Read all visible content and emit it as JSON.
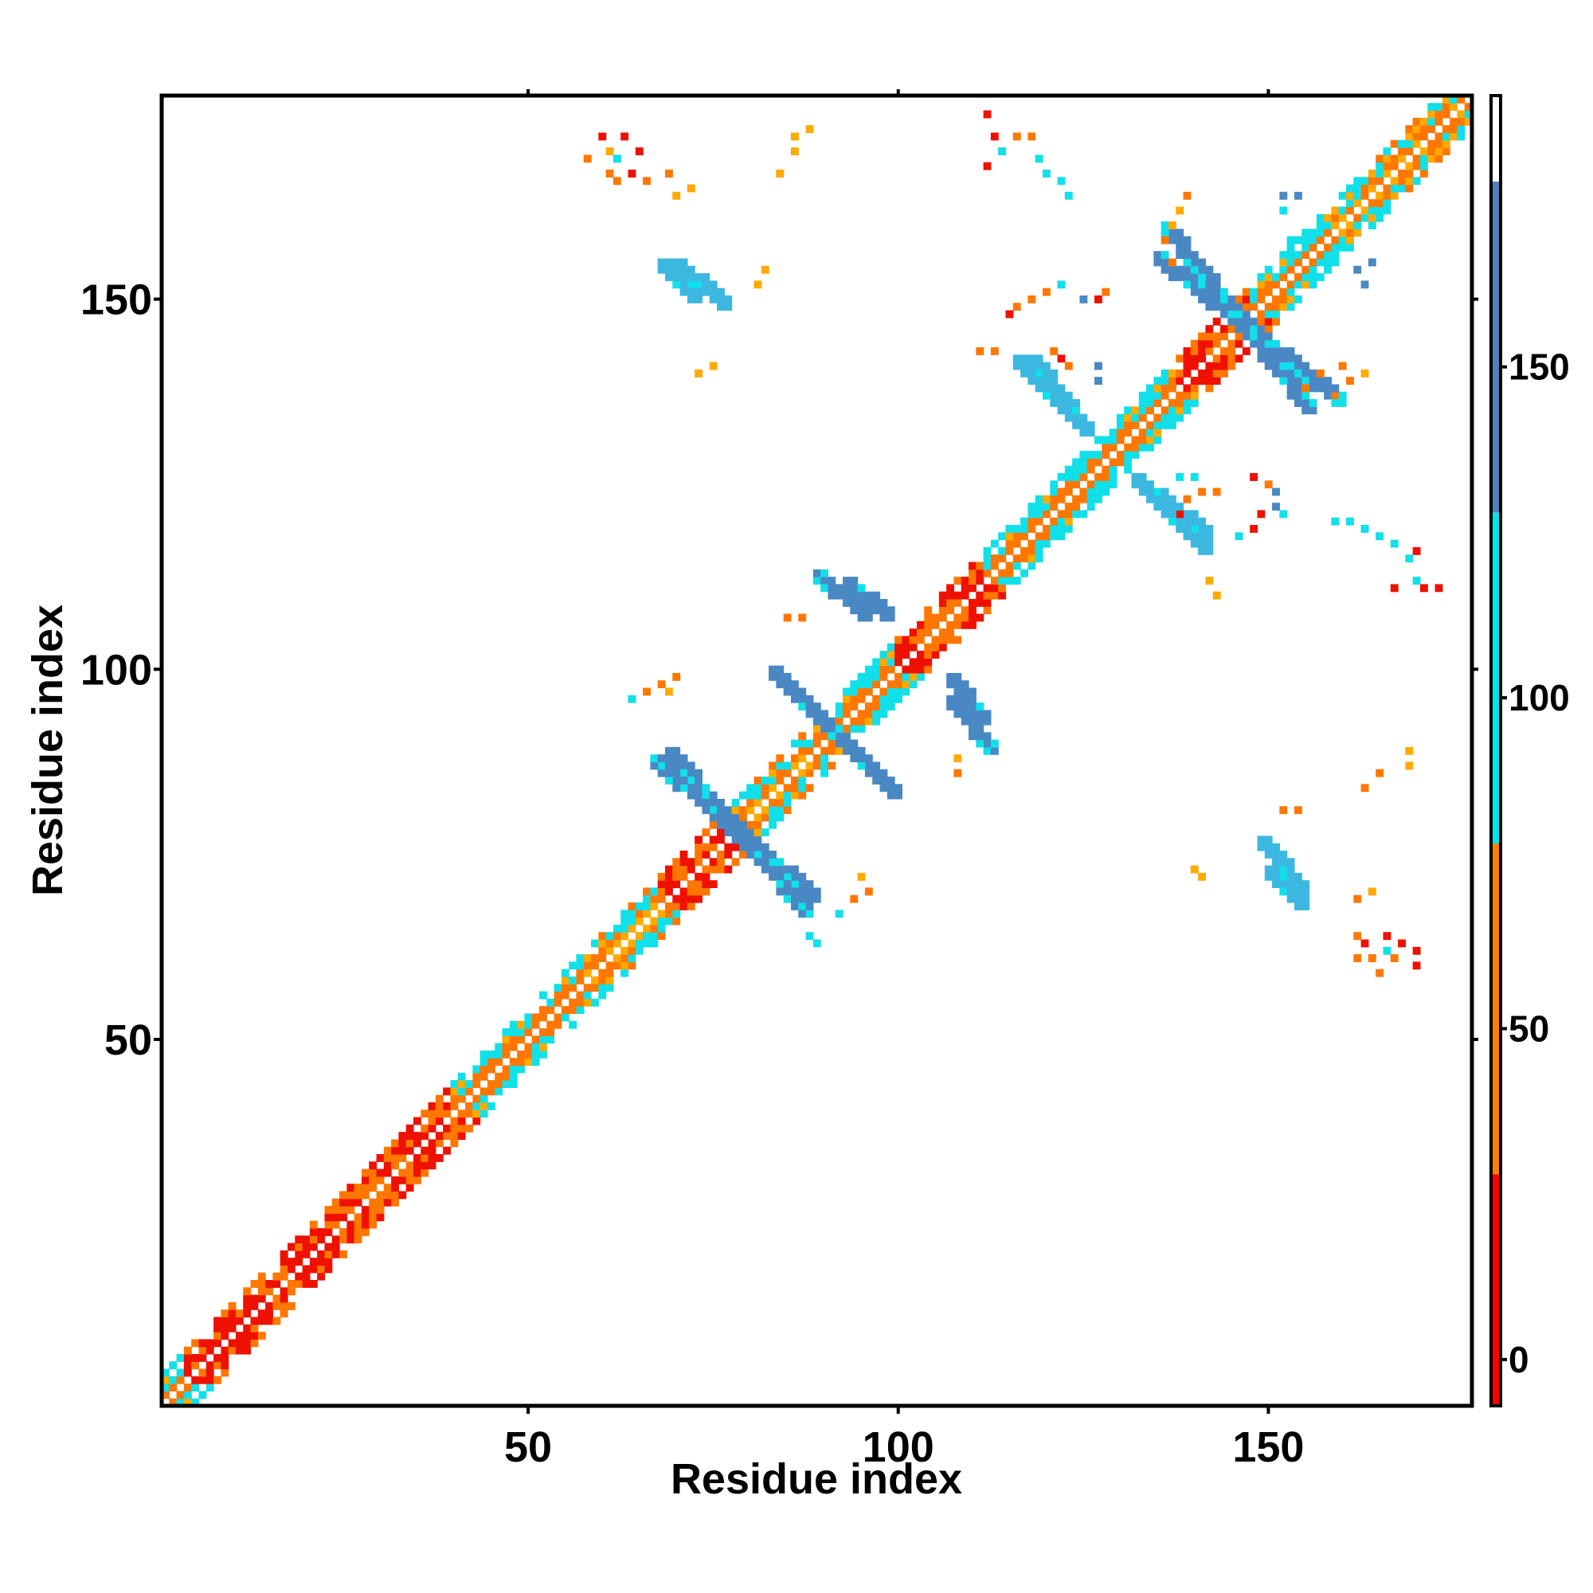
{
  "chart_data": {
    "type": "heatmap",
    "title": "",
    "xlabel": "Residue index",
    "ylabel": "Residue index",
    "xlim": [
      1,
      177
    ],
    "ylim": [
      1,
      177
    ],
    "x_ticks": [
      50,
      100,
      150
    ],
    "y_ticks": [
      50,
      100,
      150
    ],
    "grid": false,
    "colorbar": {
      "ticks": [
        0,
        50,
        100,
        150
      ],
      "range": [
        -7,
        191
      ],
      "bands": [
        {
          "from": -7,
          "to": 28,
          "color": "#ff0000"
        },
        {
          "from": 28,
          "to": 78,
          "color": "#ff7f00"
        },
        {
          "from": 78,
          "to": 128,
          "color": "#00e5ee"
        },
        {
          "from": 128,
          "to": 178,
          "color": "#4f81bd"
        },
        {
          "from": 178,
          "to": 191,
          "color": "#ffffff"
        }
      ]
    },
    "colors": {
      "red": "#ee1100",
      "orange": "#ff7700",
      "amber": "#ffaa00",
      "cyan": "#11e0ea",
      "skyblue": "#3cb8e0",
      "steelblue": "#4a88c4"
    },
    "diagonal_band": {
      "from": 1,
      "to": 177,
      "segments": [
        {
          "from": 1,
          "to": 4,
          "color": "cyan"
        },
        {
          "from": 4,
          "to": 40,
          "color": "red"
        },
        {
          "from": 40,
          "to": 58,
          "color": "cyan"
        },
        {
          "from": 58,
          "to": 68,
          "color": "orange"
        },
        {
          "from": 68,
          "to": 77,
          "color": "red"
        },
        {
          "from": 77,
          "to": 88,
          "color": "orange"
        },
        {
          "from": 88,
          "to": 100,
          "color": "cyan"
        },
        {
          "from": 100,
          "to": 112,
          "color": "red"
        },
        {
          "from": 112,
          "to": 138,
          "color": "cyan"
        },
        {
          "from": 138,
          "to": 148,
          "color": "red"
        },
        {
          "from": 148,
          "to": 158,
          "color": "cyan"
        },
        {
          "from": 158,
          "to": 177,
          "color": "orange"
        }
      ]
    },
    "antiparallel_strands": [
      {
        "x": [
          69,
          87
        ],
        "y": [
          88,
          67
        ],
        "color": "steelblue"
      },
      {
        "x": [
          84,
          99
        ],
        "y": [
          98,
          83
        ],
        "color": "steelblue"
      },
      {
        "x": [
          135,
          159
        ],
        "y": [
          155,
          136
        ],
        "color": "steelblue"
      },
      {
        "x": [
          118,
          125
        ],
        "y": [
          141,
          132
        ],
        "color": "skyblue"
      },
      {
        "x": [
          134,
          141
        ],
        "y": [
          123,
          116
        ],
        "color": "skyblue"
      },
      {
        "x": [
          70,
          76
        ],
        "y": [
          154,
          149
        ],
        "color": "skyblue"
      },
      {
        "x": [
          89,
          95
        ],
        "y": [
          112,
          107
        ],
        "color": "steelblue"
      },
      {
        "x": [
          107,
          111
        ],
        "y": [
          98,
          93
        ],
        "color": "steelblue"
      },
      {
        "x": [
          150,
          154
        ],
        "y": [
          72,
          68
        ],
        "color": "skyblue"
      }
    ],
    "contacts": [
      [
        60,
        172,
        "red"
      ],
      [
        63,
        172,
        "red"
      ],
      [
        58,
        169,
        "orange"
      ],
      [
        61,
        170,
        "amber"
      ],
      [
        62,
        169,
        "cyan"
      ],
      [
        65,
        170,
        "red"
      ],
      [
        61,
        167,
        "orange"
      ],
      [
        62,
        166,
        "orange"
      ],
      [
        64,
        167,
        "red"
      ],
      [
        66,
        166,
        "orange"
      ],
      [
        69,
        167,
        "orange"
      ],
      [
        70,
        164,
        "amber"
      ],
      [
        72,
        165,
        "amber"
      ],
      [
        86,
        172,
        "amber"
      ],
      [
        88,
        173,
        "amber"
      ],
      [
        86,
        170,
        "amber"
      ],
      [
        84,
        167,
        "amber"
      ],
      [
        112,
        175,
        "red"
      ],
      [
        113,
        172,
        "red"
      ],
      [
        114,
        170,
        "cyan"
      ],
      [
        116,
        172,
        "orange"
      ],
      [
        118,
        172,
        "orange"
      ],
      [
        119,
        169,
        "cyan"
      ],
      [
        112,
        168,
        "red"
      ],
      [
        120,
        167,
        "cyan"
      ],
      [
        122,
        166,
        "cyan"
      ],
      [
        123,
        164,
        "cyan"
      ],
      [
        81,
        152,
        "amber"
      ],
      [
        82,
        154,
        "amber"
      ],
      [
        73,
        140,
        "amber"
      ],
      [
        75,
        141,
        "amber"
      ],
      [
        122,
        152,
        "cyan"
      ],
      [
        118,
        150,
        "orange"
      ],
      [
        120,
        151,
        "orange"
      ],
      [
        116,
        149,
        "orange"
      ],
      [
        115,
        148,
        "red"
      ],
      [
        127,
        150,
        "red"
      ],
      [
        128,
        151,
        "orange"
      ],
      [
        125,
        150,
        "steelblue"
      ],
      [
        111,
        143,
        "orange"
      ],
      [
        113,
        143,
        "orange"
      ],
      [
        121,
        143,
        "orange"
      ],
      [
        122,
        142,
        "red"
      ],
      [
        123,
        141,
        "orange"
      ],
      [
        127,
        141,
        "steelblue"
      ],
      [
        127,
        139,
        "steelblue"
      ],
      [
        139,
        164,
        "orange"
      ],
      [
        138,
        162,
        "amber"
      ],
      [
        137,
        160,
        "amber"
      ],
      [
        136,
        158,
        "orange"
      ],
      [
        137,
        155,
        "orange"
      ],
      [
        152,
        164,
        "steelblue"
      ],
      [
        154,
        164,
        "steelblue"
      ],
      [
        152,
        162,
        "cyan"
      ],
      [
        153,
        158,
        "cyan"
      ],
      [
        162,
        154,
        "steelblue"
      ],
      [
        164,
        155,
        "steelblue"
      ],
      [
        163,
        152,
        "steelblue"
      ],
      [
        160,
        141,
        "orange"
      ],
      [
        163,
        140,
        "amber"
      ],
      [
        157,
        140,
        "orange"
      ],
      [
        155,
        138,
        "orange"
      ],
      [
        159,
        137,
        "orange"
      ],
      [
        161,
        139,
        "orange"
      ],
      [
        138,
        126,
        "cyan"
      ],
      [
        140,
        126,
        "cyan"
      ],
      [
        139,
        123,
        "orange"
      ],
      [
        141,
        124,
        "orange"
      ],
      [
        143,
        124,
        "orange"
      ],
      [
        138,
        121,
        "red"
      ],
      [
        148,
        126,
        "red"
      ],
      [
        150,
        125,
        "orange"
      ],
      [
        151,
        124,
        "steelblue"
      ],
      [
        151,
        122,
        "steelblue"
      ],
      [
        149,
        121,
        "red"
      ],
      [
        152,
        121,
        "cyan"
      ],
      [
        148,
        119,
        "red"
      ],
      [
        146,
        118,
        "cyan"
      ],
      [
        159,
        120,
        "cyan"
      ],
      [
        161,
        120,
        "cyan"
      ],
      [
        163,
        119,
        "cyan"
      ],
      [
        165,
        118,
        "cyan"
      ],
      [
        167,
        117,
        "cyan"
      ],
      [
        169,
        115,
        "cyan"
      ],
      [
        170,
        116,
        "red"
      ],
      [
        167,
        111,
        "red"
      ],
      [
        171,
        111,
        "red"
      ],
      [
        173,
        111,
        "red"
      ],
      [
        170,
        112,
        "cyan"
      ],
      [
        142,
        112,
        "amber"
      ],
      [
        143,
        110,
        "amber"
      ],
      [
        64,
        96,
        "cyan"
      ],
      [
        66,
        97,
        "orange"
      ],
      [
        68,
        98,
        "orange"
      ],
      [
        70,
        99,
        "orange"
      ],
      [
        69,
        97,
        "amber"
      ],
      [
        85,
        107,
        "orange"
      ],
      [
        87,
        107,
        "orange"
      ],
      [
        108,
        88,
        "amber"
      ],
      [
        108,
        86,
        "orange"
      ],
      [
        95,
        72,
        "amber"
      ],
      [
        96,
        70,
        "orange"
      ],
      [
        94,
        69,
        "orange"
      ],
      [
        92,
        67,
        "cyan"
      ],
      [
        88,
        64,
        "cyan"
      ],
      [
        89,
        63,
        "cyan"
      ],
      [
        140,
        73,
        "amber"
      ],
      [
        141,
        72,
        "amber"
      ],
      [
        152,
        81,
        "orange"
      ],
      [
        154,
        81,
        "orange"
      ],
      [
        162,
        69,
        "orange"
      ],
      [
        164,
        70,
        "amber"
      ],
      [
        163,
        84,
        "orange"
      ],
      [
        165,
        86,
        "orange"
      ],
      [
        169,
        87,
        "amber"
      ],
      [
        169,
        89,
        "amber"
      ],
      [
        162,
        64,
        "orange"
      ],
      [
        163,
        63,
        "red"
      ],
      [
        162,
        61,
        "orange"
      ],
      [
        164,
        61,
        "orange"
      ],
      [
        166,
        62,
        "cyan"
      ],
      [
        167,
        61,
        "orange"
      ],
      [
        166,
        64,
        "red"
      ],
      [
        168,
        63,
        "red"
      ],
      [
        170,
        62,
        "red"
      ],
      [
        165,
        59,
        "orange"
      ],
      [
        170,
        60,
        "red"
      ]
    ]
  }
}
